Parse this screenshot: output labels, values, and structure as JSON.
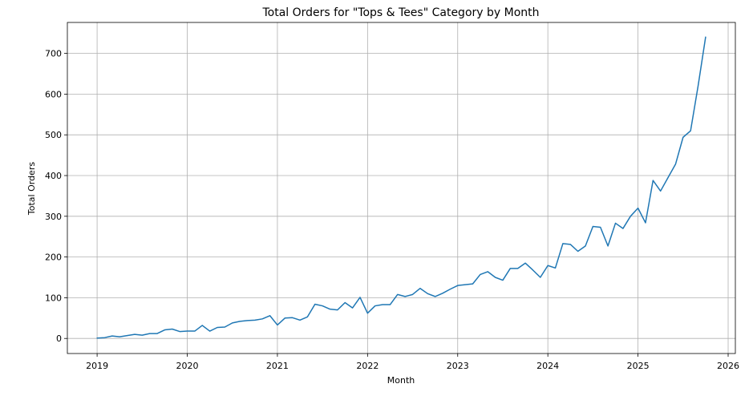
{
  "chart_data": {
    "type": "line",
    "title": "Total Orders for \"Tops & Tees\" Category by Month",
    "xlabel": "Month",
    "ylabel": "Total Orders",
    "xlim": [
      2018.67,
      2026.08
    ],
    "ylim": [
      -37,
      776
    ],
    "x_ticks": [
      2019,
      2020,
      2021,
      2022,
      2023,
      2024,
      2025,
      2026
    ],
    "x_tick_labels": [
      "2019",
      "2020",
      "2021",
      "2022",
      "2023",
      "2024",
      "2025",
      "2026"
    ],
    "y_ticks": [
      0,
      100,
      200,
      300,
      400,
      500,
      600,
      700
    ],
    "y_tick_labels": [
      "0",
      "100",
      "200",
      "300",
      "400",
      "500",
      "600",
      "700"
    ],
    "grid": true,
    "color": "#1f77b4",
    "x_start": "2019-01",
    "x_step": "month",
    "x": [
      "2019-01",
      "2019-02",
      "2019-03",
      "2019-04",
      "2019-05",
      "2019-06",
      "2019-07",
      "2019-08",
      "2019-09",
      "2019-10",
      "2019-11",
      "2019-12",
      "2020-01",
      "2020-02",
      "2020-03",
      "2020-04",
      "2020-05",
      "2020-06",
      "2020-07",
      "2020-08",
      "2020-09",
      "2020-10",
      "2020-11",
      "2020-12",
      "2021-01",
      "2021-02",
      "2021-03",
      "2021-04",
      "2021-05",
      "2021-06",
      "2021-07",
      "2021-08",
      "2021-09",
      "2021-10",
      "2021-11",
      "2021-12",
      "2022-01",
      "2022-02",
      "2022-03",
      "2022-04",
      "2022-05",
      "2022-06",
      "2022-07",
      "2022-08",
      "2022-09",
      "2022-10",
      "2022-11",
      "2022-12",
      "2023-01",
      "2023-02",
      "2023-03",
      "2023-04",
      "2023-05",
      "2023-06",
      "2023-07",
      "2023-08",
      "2023-09",
      "2023-10",
      "2023-11",
      "2023-12",
      "2024-01",
      "2024-02",
      "2024-03",
      "2024-04",
      "2024-05",
      "2024-06",
      "2024-07",
      "2024-08",
      "2024-09",
      "2024-10",
      "2024-11",
      "2024-12",
      "2025-01",
      "2025-02",
      "2025-03",
      "2025-04",
      "2025-05",
      "2025-06",
      "2025-07",
      "2025-08",
      "2025-09",
      "2025-10"
    ],
    "values": [
      1,
      2,
      6,
      4,
      7,
      10,
      8,
      12,
      12,
      21,
      23,
      17,
      18,
      18,
      32,
      18,
      27,
      28,
      38,
      42,
      44,
      45,
      48,
      56,
      33,
      50,
      51,
      45,
      53,
      84,
      80,
      72,
      70,
      88,
      75,
      101,
      62,
      80,
      83,
      83,
      108,
      103,
      108,
      123,
      110,
      103,
      111,
      121,
      130,
      132,
      134,
      157,
      164,
      150,
      143,
      172,
      172,
      185,
      168,
      150,
      179,
      173,
      233,
      231,
      214,
      227,
      275,
      273,
      227,
      283,
      270,
      300,
      320,
      284,
      388,
      362,
      395,
      428,
      494,
      510,
      620,
      740
    ]
  }
}
